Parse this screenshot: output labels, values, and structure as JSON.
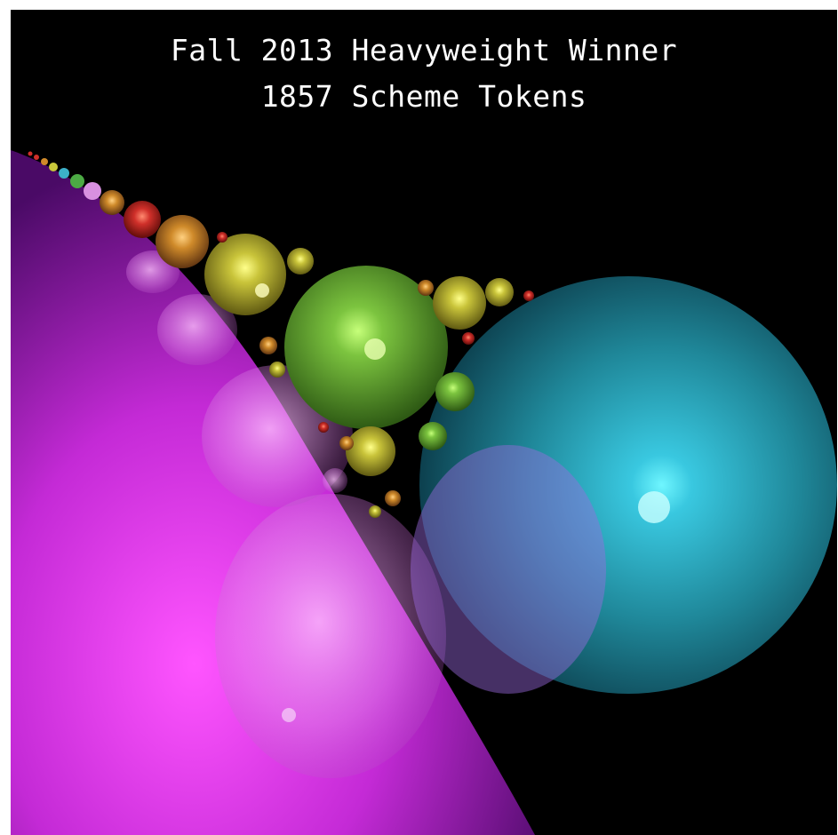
{
  "caption": {
    "title": "Fall 2013 Heavyweight Winner",
    "subtitle": "1857 Scheme Tokens"
  },
  "render": {
    "background": "#000000",
    "colors": {
      "magenta_sphere": "#d22ae0",
      "cyan_sphere": "#2a9fb0",
      "green_sphere": "#6fb53a",
      "yellow_sphere": "#c8c83a",
      "orange_sphere": "#d08a2a",
      "red_sphere": "#d0302a"
    }
  }
}
